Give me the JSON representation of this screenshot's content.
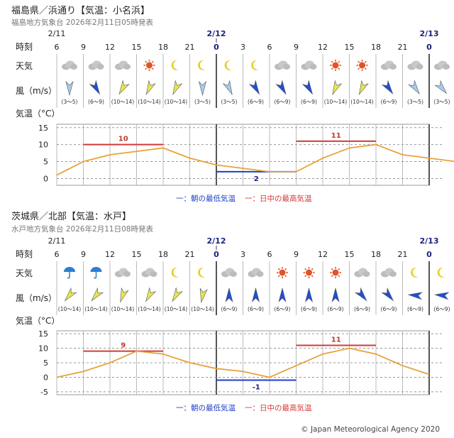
{
  "footer": "© Japan Meteorological Agency 2020",
  "labels": {
    "time": "時刻",
    "weather": "天気",
    "wind": "風（m/s）",
    "temp": "気温（°C）"
  },
  "chart_data": [
    {
      "type": "line",
      "title": "福島県／浜通り【気温：小名浜】",
      "subtitle": "福島地方気象台 2026年2月11日05時発表",
      "date_labels": [
        "2/11",
        "2/12",
        "2/13"
      ],
      "hours": [
        "6",
        "9",
        "12",
        "15",
        "18",
        "21",
        "0",
        "3",
        "6",
        "9",
        "12",
        "15",
        "18",
        "21",
        "0"
      ],
      "weather": [
        "cloudy",
        "cloudy",
        "cloudy",
        "sunny",
        "clear-night",
        "clear-night",
        "clear-night",
        "clear-night",
        "cloudy",
        "cloudy",
        "sunny",
        "sunny",
        "cloudy",
        "cloudy",
        "cloudy"
      ],
      "wind_dirs": [
        "N",
        "NW",
        "NE",
        "NE",
        "NE",
        "N",
        "NW",
        "NW",
        "NW",
        "NW",
        "NE",
        "NE",
        "NW",
        "NW",
        "NW"
      ],
      "wind_dir_angles": [
        0,
        -30,
        30,
        25,
        25,
        0,
        -25,
        -30,
        -30,
        -30,
        25,
        25,
        -35,
        -35,
        -40
      ],
      "wind_speeds": [
        "(3〜5)",
        "(6〜9)",
        "(10〜14)",
        "(10〜14)",
        "(10〜14)",
        "(3〜5)",
        "(3〜5)",
        "(6〜9)",
        "(6〜9)",
        "(6〜9)",
        "(10〜14)",
        "(10〜14)",
        "(6〜9)",
        "(3〜5)",
        "(3〜5)"
      ],
      "wind_colors": [
        "#a8cdea",
        "#1f4fd0",
        "#e8e84a",
        "#e8e84a",
        "#e8e84a",
        "#a8cdea",
        "#a8cdea",
        "#1f4fd0",
        "#1f4fd0",
        "#1f4fd0",
        "#e8e84a",
        "#e8e84a",
        "#1f4fd0",
        "#a8cdea",
        "#a8cdea"
      ],
      "temps": [
        1,
        5,
        7,
        8,
        9,
        6,
        4,
        3,
        2,
        2,
        6,
        9,
        10,
        7,
        6,
        5
      ],
      "temp_x": [
        6,
        9,
        12,
        15,
        18,
        21,
        24,
        27,
        30,
        33,
        36,
        39,
        42,
        45,
        48,
        51
      ],
      "ylim": [
        -2,
        16
      ],
      "yticks": [
        15,
        10,
        5,
        0
      ],
      "min_temp": {
        "value": 2,
        "label": "2",
        "from": 24,
        "to": 33
      },
      "max_temps": [
        {
          "value": 10,
          "label": "10",
          "from": 9,
          "to": 18
        },
        {
          "value": 11,
          "label": "11",
          "from": 33,
          "to": 42
        }
      ],
      "legend": {
        "min": "一：朝の最低気温",
        "max": "一：日中の最高気温"
      }
    },
    {
      "type": "line",
      "title": "茨城県／北部【気温：水戸】",
      "subtitle": "水戸地方気象台 2026年2月11日08時発表",
      "date_labels": [
        "2/11",
        "2/12",
        "2/13"
      ],
      "hours": [
        "6",
        "9",
        "12",
        "15",
        "18",
        "21",
        "0",
        "3",
        "6",
        "9",
        "12",
        "15",
        "18",
        "21",
        "0"
      ],
      "weather": [
        "rain",
        "rain",
        "cloudy",
        "cloudy",
        "clear-night",
        "clear-night",
        "cloudy",
        "cloudy",
        "sunny",
        "sunny",
        "sunny",
        "cloudy",
        "cloudy",
        "clear-night",
        "clear-night"
      ],
      "wind_dirs": [
        "NE",
        "NE",
        "N",
        "NE",
        "NE",
        "N",
        "S",
        "S",
        "S",
        "S",
        "S",
        "NW",
        "NW",
        "E",
        "E"
      ],
      "wind_dir_angles": [
        40,
        40,
        20,
        30,
        30,
        10,
        180,
        180,
        180,
        180,
        180,
        -40,
        -40,
        95,
        95
      ],
      "wind_speeds": [
        "(10〜14)",
        "(10〜14)",
        "(10〜14)",
        "(10〜14)",
        "(10〜14)",
        "(10〜14)",
        "(6〜9)",
        "(6〜9)",
        "(6〜9)",
        "(6〜9)",
        "(6〜9)",
        "(6〜9)",
        "(6〜9)",
        "(6〜9)",
        "(6〜9)"
      ],
      "wind_colors": [
        "#e8e84a",
        "#e8e84a",
        "#e8e84a",
        "#e8e84a",
        "#e8e84a",
        "#e8e84a",
        "#1f4fd0",
        "#1f4fd0",
        "#1f4fd0",
        "#1f4fd0",
        "#1f4fd0",
        "#1f4fd0",
        "#1f4fd0",
        "#1f4fd0",
        "#1f4fd0"
      ],
      "temps": [
        0,
        2,
        5,
        9,
        8,
        5,
        3,
        2,
        0,
        4,
        8,
        10,
        8,
        4,
        1
      ],
      "temp_x": [
        6,
        9,
        12,
        15,
        18,
        21,
        24,
        27,
        30,
        33,
        36,
        39,
        42,
        45,
        48
      ],
      "ylim": [
        -6,
        16
      ],
      "yticks": [
        15,
        10,
        5,
        0,
        -5
      ],
      "min_temp": {
        "value": -1,
        "label": "-1",
        "from": 24,
        "to": 33
      },
      "max_temps": [
        {
          "value": 9,
          "label": "9",
          "from": 9,
          "to": 18
        },
        {
          "value": 11,
          "label": "11",
          "from": 33,
          "to": 42
        }
      ],
      "legend": {
        "min": "一：朝の最低気温",
        "max": "一：日中の最高気温"
      }
    }
  ]
}
